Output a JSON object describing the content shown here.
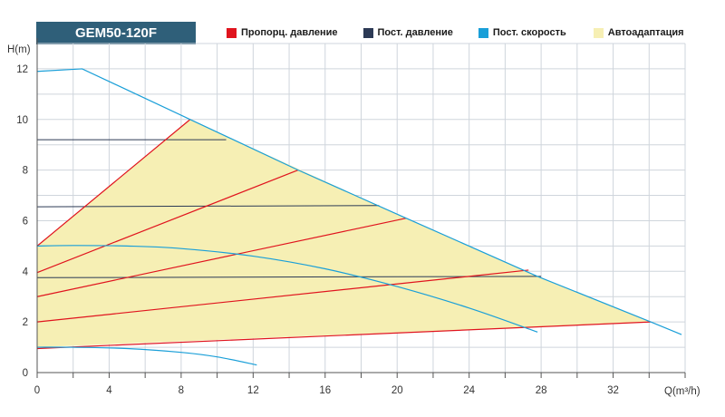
{
  "chart_data": {
    "type": "line",
    "title": "GEM50-120F",
    "xlabel": "Q(m³/h)",
    "ylabel": "H(m)",
    "xlim": [
      0,
      36
    ],
    "ylim": [
      0,
      13
    ],
    "x_ticks": [
      0,
      4,
      8,
      12,
      16,
      20,
      24,
      28,
      32
    ],
    "y_ticks": [
      0,
      2,
      4,
      6,
      8,
      10,
      12
    ],
    "grid": true,
    "legend_position": "top",
    "legend": [
      {
        "label": "Пропорц. давление",
        "color": "#e0141e"
      },
      {
        "label": "Пост. давление",
        "color": "#2c3a55"
      },
      {
        "label": "Пост. скорость",
        "color": "#1a9fd8"
      },
      {
        "label": "Автоадаптация",
        "color": "#f6efb4"
      }
    ],
    "autoadapt_area": [
      [
        0,
        5
      ],
      [
        8.5,
        10
      ],
      [
        20.5,
        6.1
      ],
      [
        27.8,
        3.8
      ],
      [
        34.1,
        2.0
      ],
      [
        27.2,
        1.8
      ],
      [
        0,
        1.0
      ]
    ],
    "speed_curves": [
      [
        [
          0,
          11.9
        ],
        [
          2.5,
          12.0
        ],
        [
          8.5,
          10.0
        ],
        [
          14.5,
          8.0
        ],
        [
          20.5,
          6.1
        ],
        [
          27.8,
          3.8
        ],
        [
          34.1,
          2.0
        ],
        [
          35.8,
          1.5
        ]
      ],
      [
        [
          0,
          5.0
        ],
        [
          2,
          5.02
        ],
        [
          5,
          5.0
        ],
        [
          8,
          4.9
        ],
        [
          12,
          4.6
        ],
        [
          16,
          4.1
        ],
        [
          20,
          3.4
        ],
        [
          24,
          2.55
        ],
        [
          27.8,
          1.6
        ]
      ],
      [
        [
          0,
          1.0
        ],
        [
          2,
          1.0
        ],
        [
          5,
          0.95
        ],
        [
          8,
          0.8
        ],
        [
          10,
          0.62
        ],
        [
          12.2,
          0.3
        ]
      ]
    ],
    "proportional_lines": [
      [
        [
          0,
          5.0
        ],
        [
          8.5,
          10.0
        ]
      ],
      [
        [
          0,
          3.95
        ],
        [
          14.5,
          8.0
        ]
      ],
      [
        [
          0,
          3.0
        ],
        [
          20.5,
          6.1
        ]
      ],
      [
        [
          0,
          2.0
        ],
        [
          27.3,
          4.05
        ]
      ],
      [
        [
          0,
          0.95
        ],
        [
          34.1,
          2.0
        ]
      ]
    ],
    "constant_lines": [
      [
        [
          0,
          9.2
        ],
        [
          10.5,
          9.2
        ]
      ],
      [
        [
          0,
          6.55
        ],
        [
          19,
          6.6
        ]
      ],
      [
        [
          0,
          3.75
        ],
        [
          28,
          3.8
        ]
      ]
    ]
  }
}
